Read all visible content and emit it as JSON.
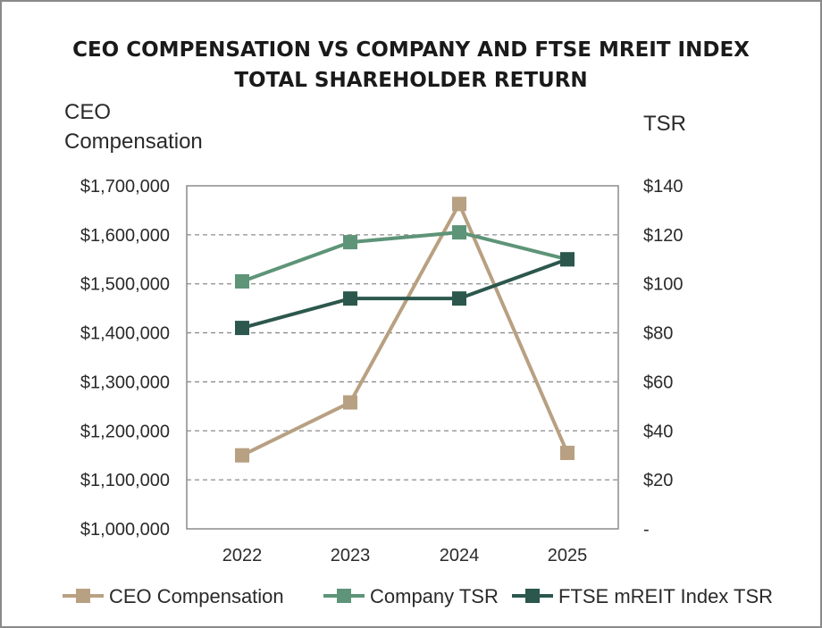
{
  "chart_data": {
    "type": "line",
    "title_line1": "CEO COMPENSATION VS COMPANY AND FTSE MREIT INDEX",
    "title_line2": "TOTAL SHAREHOLDER RETURN",
    "y_left_label_line1": "CEO",
    "y_left_label_line2": "Compensation",
    "y_right_label": "TSR",
    "categories": [
      "2022",
      "2023",
      "2024",
      "2025"
    ],
    "y_left": {
      "ylim": [
        1000000,
        1700000
      ],
      "tick_labels": [
        "$1,000,000",
        "$1,100,000",
        "$1,200,000",
        "$1,300,000",
        "$1,400,000",
        "$1,500,000",
        "$1,600,000",
        "$1,700,000"
      ]
    },
    "y_right": {
      "ylim": [
        0,
        140
      ],
      "tick_labels": [
        "-",
        "$20",
        "$40",
        "$60",
        "$80",
        "$100",
        "$120",
        "$140"
      ]
    },
    "grid": "horizontal-dashed",
    "legend_position": "bottom",
    "series": [
      {
        "name": "CEO Compensation",
        "axis": "left",
        "color": "#b8a082",
        "values": [
          1150000,
          1258000,
          1663000,
          1155000
        ]
      },
      {
        "name": "Company TSR",
        "axis": "right",
        "color": "#5e9478",
        "values": [
          101,
          117,
          121,
          110
        ]
      },
      {
        "name": "FTSE mREIT Index TSR",
        "axis": "right",
        "color": "#2c574d",
        "values": [
          82,
          94,
          94,
          110
        ]
      }
    ]
  }
}
